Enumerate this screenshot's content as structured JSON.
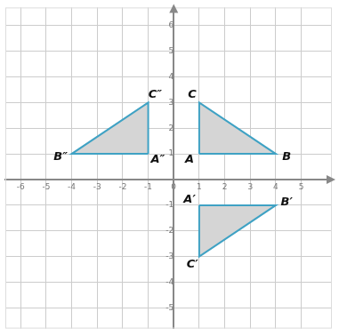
{
  "chart_data": {
    "type": "scatter",
    "xlim": [
      -6.6,
      6.2
    ],
    "ylim": [
      -5.8,
      6.7
    ],
    "xticks": [
      -6,
      -5,
      -4,
      -3,
      -2,
      -1,
      0,
      1,
      2,
      3,
      4,
      5
    ],
    "yticks": [
      -5,
      -4,
      -3,
      -2,
      -1,
      1,
      2,
      3,
      4,
      5,
      6
    ],
    "grid": true,
    "color": "#3fa2c4",
    "series": [
      {
        "x": [
          1,
          4,
          1
        ],
        "y": [
          1,
          1,
          3
        ],
        "point_labels": [
          "A",
          "B",
          "C"
        ]
      },
      {
        "x": [
          1,
          4,
          1
        ],
        "y": [
          -1,
          -1,
          -3
        ],
        "point_labels": [
          "A′",
          "B′",
          "C′"
        ]
      },
      {
        "x": [
          -1,
          -4,
          -1
        ],
        "y": [
          1,
          1,
          3
        ],
        "point_labels": [
          "A″",
          "B″",
          "C″"
        ]
      }
    ]
  }
}
